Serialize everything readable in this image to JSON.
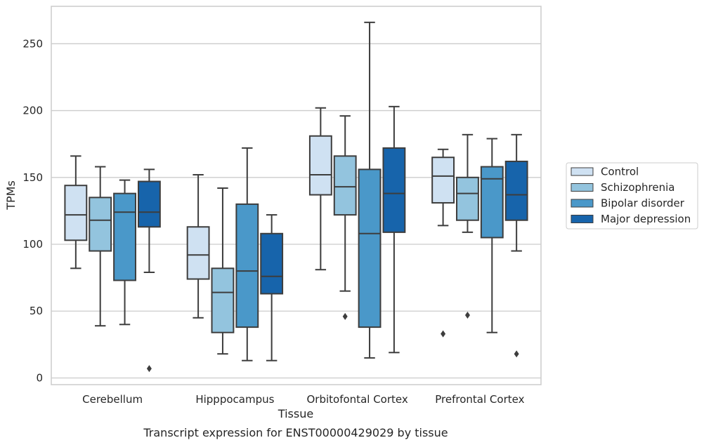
{
  "chart_data": {
    "type": "boxplot",
    "caption": "Transcript expression for ENST00000429029 by tissue",
    "xlabel": "Tissue",
    "ylabel": "TPMs",
    "ylim": [
      -5,
      278
    ],
    "yticks": [
      0,
      50,
      100,
      150,
      200,
      250
    ],
    "grid": "horizontal",
    "legend_position": "right",
    "categories": [
      "Cerebellum",
      "Hipppocampus",
      "Orbitofontal Cortex",
      "Prefrontal Cortex"
    ],
    "series": [
      {
        "name": "Control",
        "color": "#cfe1f2",
        "boxes": [
          {
            "whislo": 82,
            "q1": 103,
            "med": 122,
            "q3": 144,
            "whishi": 166,
            "fliers": []
          },
          {
            "whislo": 45,
            "q1": 74,
            "med": 92,
            "q3": 113,
            "whishi": 152,
            "fliers": []
          },
          {
            "whislo": 81,
            "q1": 137,
            "med": 152,
            "q3": 181,
            "whishi": 202,
            "fliers": []
          },
          {
            "whislo": 114,
            "q1": 131,
            "med": 151,
            "q3": 165,
            "whishi": 171,
            "fliers": [
              33
            ]
          }
        ]
      },
      {
        "name": "Schizophrenia",
        "color": "#93c4de",
        "boxes": [
          {
            "whislo": 39,
            "q1": 95,
            "med": 118,
            "q3": 135,
            "whishi": 158,
            "fliers": []
          },
          {
            "whislo": 18,
            "q1": 34,
            "med": 64,
            "q3": 82,
            "whishi": 142,
            "fliers": []
          },
          {
            "whislo": 65,
            "q1": 122,
            "med": 143,
            "q3": 166,
            "whishi": 196,
            "fliers": [
              46
            ]
          },
          {
            "whislo": 109,
            "q1": 118,
            "med": 138,
            "q3": 150,
            "whishi": 182,
            "fliers": [
              47
            ]
          }
        ]
      },
      {
        "name": "Bipolar disorder",
        "color": "#4a98c9",
        "boxes": [
          {
            "whislo": 40,
            "q1": 73,
            "med": 124,
            "q3": 138,
            "whishi": 148,
            "fliers": []
          },
          {
            "whislo": 13,
            "q1": 38,
            "med": 80,
            "q3": 130,
            "whishi": 172,
            "fliers": []
          },
          {
            "whislo": 15,
            "q1": 38,
            "med": 108,
            "q3": 156,
            "whishi": 266,
            "fliers": []
          },
          {
            "whislo": 34,
            "q1": 105,
            "med": 149,
            "q3": 158,
            "whishi": 179,
            "fliers": []
          }
        ]
      },
      {
        "name": "Major depression",
        "color": "#1764ab",
        "boxes": [
          {
            "whislo": 79,
            "q1": 113,
            "med": 124,
            "q3": 147,
            "whishi": 156,
            "fliers": [
              7
            ]
          },
          {
            "whislo": 13,
            "q1": 63,
            "med": 76,
            "q3": 108,
            "whishi": 122,
            "fliers": []
          },
          {
            "whislo": 19,
            "q1": 109,
            "med": 138,
            "q3": 172,
            "whishi": 203,
            "fliers": []
          },
          {
            "whislo": 95,
            "q1": 118,
            "med": 137,
            "q3": 162,
            "whishi": 182,
            "fliers": [
              18
            ]
          }
        ]
      }
    ]
  }
}
